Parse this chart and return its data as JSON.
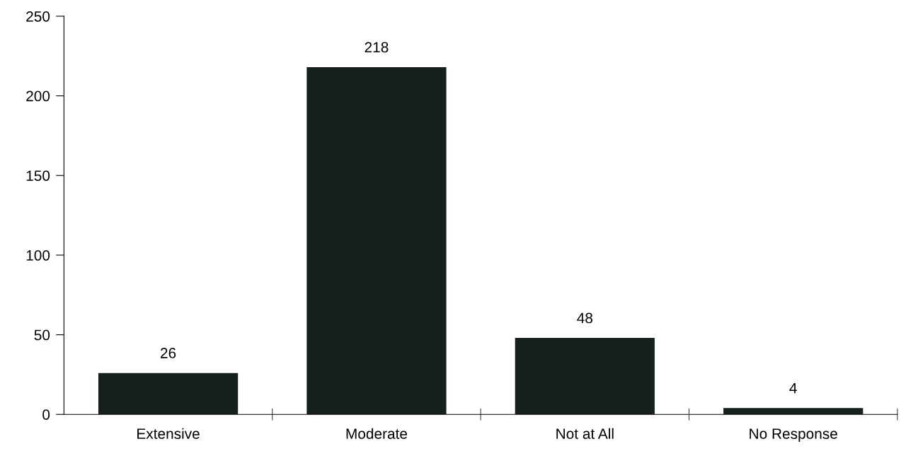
{
  "chart_data": {
    "type": "bar",
    "categories": [
      "Extensive",
      "Moderate",
      "Not at All",
      "No Response"
    ],
    "values": [
      26,
      218,
      48,
      4
    ],
    "color": "#16201c",
    "ylim": [
      0,
      250
    ],
    "yticks": [
      0,
      50,
      100,
      150,
      200,
      250
    ],
    "data_labels": true,
    "grid": false,
    "legend": false
  }
}
